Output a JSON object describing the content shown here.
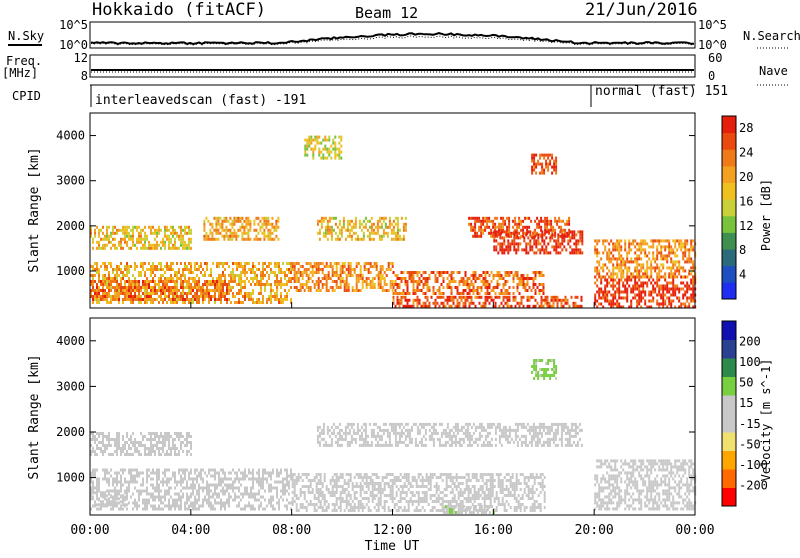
{
  "header": {
    "station": "Hokkaido (fitACF)",
    "beam": "Beam 12",
    "date": "21/Jun/2016"
  },
  "strips": {
    "nsky_label": "N.Sky",
    "nsky_ticks": [
      "10^5",
      "10^0"
    ],
    "nsearch_label": "N.Search",
    "freq_label_1": "Freq.",
    "freq_label_2": "[MHz]",
    "freq_ticks": [
      "12",
      "8"
    ],
    "nave_label": "Nave",
    "nave_ticks": [
      "60",
      "0"
    ],
    "cpid_label": "CPID",
    "cpid_segments": [
      {
        "name": "interleavedscan (fast) -191",
        "start": 0,
        "end": 20
      },
      {
        "name": "normal (fast) 151",
        "start": 20,
        "end": 24
      }
    ]
  },
  "colors": {
    "power_scale": [
      "#1f2ef0",
      "#1e4fc0",
      "#2a6a7a",
      "#3f9050",
      "#79c23c",
      "#c8d03a",
      "#f0c020",
      "#f4a020",
      "#ef7a18",
      "#ea4a10",
      "#e61e0c"
    ],
    "velocity_scale": [
      "#ff0000",
      "#ff6a00",
      "#ffa500",
      "#f0e070",
      "#c8c8c8",
      "#c8c8c8",
      "#78d040",
      "#2c8a4a",
      "#2a4090",
      "#1010b0"
    ]
  },
  "chart_data": [
    {
      "type": "heatmap",
      "title": "Power",
      "xlabel": "Time UT",
      "ylabel": "Slant Range [km]",
      "xlim": [
        0,
        24
      ],
      "ylim": [
        180,
        4500
      ],
      "x_ticks": [
        "00:00",
        "04:00",
        "08:00",
        "12:00",
        "16:00",
        "20:00",
        "00:00"
      ],
      "y_ticks": [
        "1000",
        "2000",
        "3000",
        "4000"
      ],
      "colorbar_label": "Power [dB]",
      "colorbar_ticks": [
        "4",
        "8",
        "12",
        "16",
        "20",
        "24",
        "28"
      ],
      "colorbar_range": [
        0,
        30
      ],
      "regions": [
        {
          "t0": 0.0,
          "t1": 8.0,
          "r0": 300,
          "r1": 1200,
          "value": 20
        },
        {
          "t0": 0.0,
          "t1": 5.5,
          "r0": 400,
          "r1": 800,
          "value": 24
        },
        {
          "t0": 0.0,
          "t1": 4.0,
          "r0": 1500,
          "r1": 2000,
          "value": 18
        },
        {
          "t0": 4.5,
          "t1": 7.5,
          "r0": 1700,
          "r1": 2200,
          "value": 20
        },
        {
          "t0": 8.5,
          "t1": 10.0,
          "r0": 3500,
          "r1": 4000,
          "value": 16
        },
        {
          "t0": 8.0,
          "t1": 12.0,
          "r0": 600,
          "r1": 1200,
          "value": 22
        },
        {
          "t0": 9.0,
          "t1": 12.5,
          "r0": 1700,
          "r1": 2200,
          "value": 18
        },
        {
          "t0": 12.0,
          "t1": 18.0,
          "r0": 500,
          "r1": 1000,
          "value": 24
        },
        {
          "t0": 15.0,
          "t1": 19.0,
          "r0": 1800,
          "r1": 2200,
          "value": 26
        },
        {
          "t0": 16.0,
          "t1": 19.5,
          "r0": 1400,
          "r1": 1900,
          "value": 28
        },
        {
          "t0": 12.0,
          "t1": 19.5,
          "r0": 220,
          "r1": 450,
          "value": 26
        },
        {
          "t0": 17.5,
          "t1": 18.5,
          "r0": 3200,
          "r1": 3600,
          "value": 26
        },
        {
          "t0": 20.0,
          "t1": 24.0,
          "r0": 200,
          "r1": 900,
          "value": 28
        },
        {
          "t0": 20.0,
          "t1": 24.0,
          "r0": 900,
          "r1": 1700,
          "value": 22
        }
      ]
    },
    {
      "type": "heatmap",
      "title": "Velocity",
      "xlabel": "Time UT",
      "ylabel": "Slant Range [km]",
      "xlim": [
        0,
        24
      ],
      "ylim": [
        180,
        4500
      ],
      "x_ticks": [
        "00:00",
        "04:00",
        "08:00",
        "12:00",
        "16:00",
        "20:00",
        "00:00"
      ],
      "y_ticks": [
        "1000",
        "2000",
        "3000",
        "4000"
      ],
      "colorbar_label": "Velocity [m s^-1]",
      "colorbar_ticks": [
        "200",
        "100",
        "50",
        "15",
        "-15",
        "-50",
        "-100",
        "-200"
      ],
      "colorbar_range": [
        -250,
        250
      ],
      "regions": [
        {
          "t0": 0.0,
          "t1": 8.0,
          "r0": 300,
          "r1": 1200,
          "value": 0
        },
        {
          "t0": 0.0,
          "t1": 4.0,
          "r0": 1500,
          "r1": 2000,
          "value": 0
        },
        {
          "t0": 8.0,
          "t1": 18.0,
          "r0": 300,
          "r1": 1100,
          "value": 0
        },
        {
          "t0": 9.0,
          "t1": 19.5,
          "r0": 1700,
          "r1": 2200,
          "value": 0
        },
        {
          "t0": 20.0,
          "t1": 24.0,
          "r0": 300,
          "r1": 1400,
          "value": 0
        },
        {
          "t0": 14.0,
          "t1": 16.0,
          "r0": 220,
          "r1": 400,
          "value": 40
        },
        {
          "t0": 17.5,
          "t1": 18.5,
          "r0": 3200,
          "r1": 3600,
          "value": 60
        },
        {
          "t0": 0.0,
          "t1": 1.5,
          "r0": 400,
          "r1": 700,
          "value": -30
        }
      ]
    }
  ]
}
